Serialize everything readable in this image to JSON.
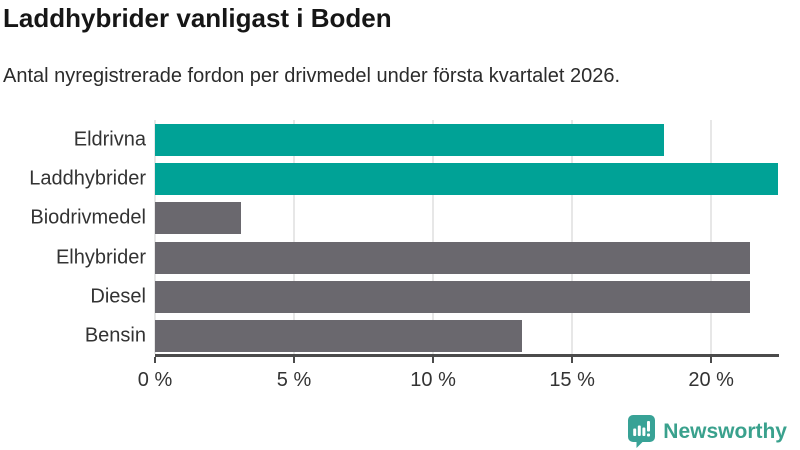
{
  "title": "Laddhybrider vanligast i Boden",
  "subtitle": "Antal nyregistrerade fordon per drivmedel under första kvartalet 2026.",
  "chart_data": {
    "type": "bar",
    "orientation": "horizontal",
    "title": "Laddhybrider vanligast i Boden",
    "subtitle": "Antal nyregistrerade fordon per drivmedel under första kvartalet 2026.",
    "categories": [
      "Eldrivna",
      "Laddhybrider",
      "Biodrivmedel",
      "Elhybrider",
      "Diesel",
      "Bensin"
    ],
    "values": [
      18.3,
      22.4,
      3.1,
      21.4,
      21.4,
      13.2
    ],
    "unit": "%",
    "xlim": [
      0,
      22.44
    ],
    "x_ticks": [
      0,
      5,
      10,
      15,
      20
    ],
    "x_tick_labels": [
      "0 %",
      "5 %",
      "10 %",
      "15 %",
      "20 %"
    ],
    "bar_colors": [
      "#00a296",
      "#00a296",
      "#6a686e",
      "#6a686e",
      "#6a686e",
      "#6a686e"
    ],
    "highlight_color": "#00a296",
    "base_color": "#6a686e",
    "grid": true,
    "legend": false
  },
  "colors": {
    "gridline": "#e7e7e7",
    "axis": "#4b4b4b",
    "text": "#333333",
    "title": "#161616"
  },
  "branding": {
    "logo_text": "Newsworthy",
    "logo_color": "#3aa18d",
    "logo_icon": "bar-chart-speech-bubble-icon",
    "logo_icon_color": "#38a296"
  }
}
